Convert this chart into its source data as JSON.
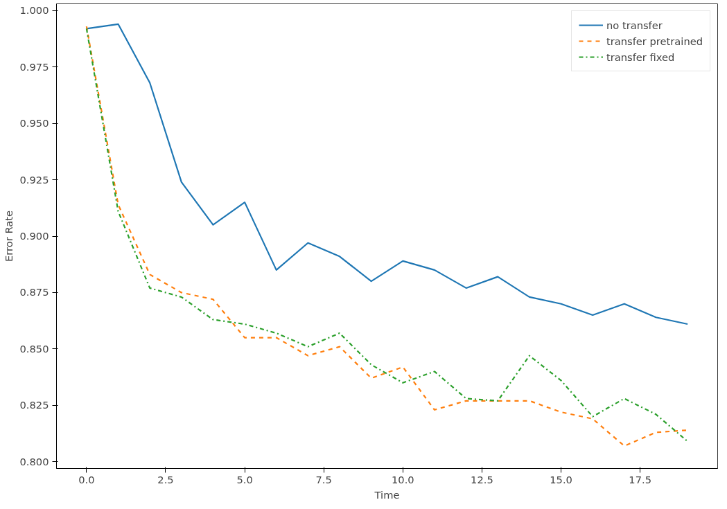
{
  "chart_data": {
    "type": "line",
    "xlabel": "Time",
    "ylabel": "Error Rate",
    "x": [
      0,
      1,
      2,
      3,
      4,
      5,
      6,
      7,
      8,
      9,
      10,
      11,
      12,
      13,
      14,
      15,
      16,
      17,
      18,
      19
    ],
    "series": [
      {
        "name": "no transfer",
        "color": "#1f77b4",
        "line_style": "solid",
        "values": [
          0.992,
          0.994,
          0.968,
          0.924,
          0.905,
          0.915,
          0.885,
          0.897,
          0.891,
          0.88,
          0.889,
          0.885,
          0.877,
          0.882,
          0.873,
          0.87,
          0.865,
          0.87,
          0.864,
          0.861
        ]
      },
      {
        "name": "transfer pretrained",
        "color": "#ff7f0e",
        "line_style": "dashed",
        "values": [
          0.993,
          0.914,
          0.883,
          0.875,
          0.872,
          0.855,
          0.855,
          0.847,
          0.851,
          0.837,
          0.842,
          0.823,
          0.827,
          0.827,
          0.827,
          0.822,
          0.819,
          0.807,
          0.813,
          0.814
        ]
      },
      {
        "name": "transfer fixed",
        "color": "#2ca02c",
        "line_style": "dashdot",
        "values": [
          0.992,
          0.911,
          0.877,
          0.873,
          0.863,
          0.861,
          0.857,
          0.851,
          0.857,
          0.843,
          0.835,
          0.84,
          0.828,
          0.827,
          0.847,
          0.836,
          0.82,
          0.828,
          0.821,
          0.809
        ]
      }
    ],
    "xlim": [
      -0.95,
      19.95
    ],
    "ylim": [
      0.797,
      1.003
    ],
    "xticks": [
      {
        "value": 0,
        "label": "0.0"
      },
      {
        "value": 2.5,
        "label": "2.5"
      },
      {
        "value": 5,
        "label": "5.0"
      },
      {
        "value": 7.5,
        "label": "7.5"
      },
      {
        "value": 10,
        "label": "10.0"
      },
      {
        "value": 12.5,
        "label": "12.5"
      },
      {
        "value": 15,
        "label": "15.0"
      },
      {
        "value": 17.5,
        "label": "17.5"
      }
    ],
    "yticks": [
      {
        "value": 0.8,
        "label": "0.800"
      },
      {
        "value": 0.825,
        "label": "0.825"
      },
      {
        "value": 0.85,
        "label": "0.850"
      },
      {
        "value": 0.875,
        "label": "0.875"
      },
      {
        "value": 0.9,
        "label": "0.900"
      },
      {
        "value": 0.925,
        "label": "0.925"
      },
      {
        "value": 0.95,
        "label": "0.950"
      },
      {
        "value": 0.975,
        "label": "0.975"
      },
      {
        "value": 1.0,
        "label": "1.000"
      }
    ],
    "grid": false,
    "legend": "top right",
    "marker": "none"
  }
}
